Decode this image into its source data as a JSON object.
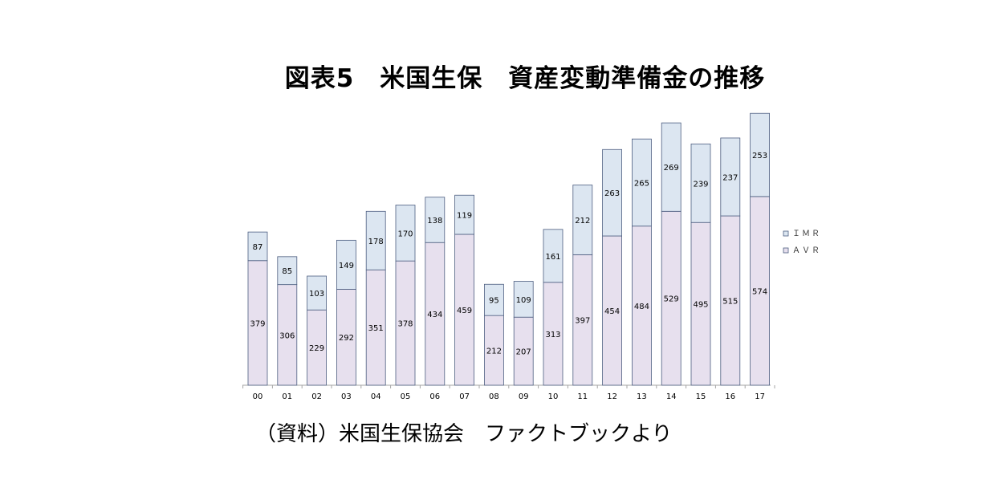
{
  "chart_data": {
    "type": "bar",
    "stacked": true,
    "title": "図表5　米国生保　資産変動準備金の推移",
    "source": "（資料）米国生保協会　ファクトブックより",
    "categories": [
      "00",
      "01",
      "02",
      "03",
      "04",
      "05",
      "06",
      "07",
      "08",
      "09",
      "10",
      "11",
      "12",
      "13",
      "14",
      "15",
      "16",
      "17"
    ],
    "series": [
      {
        "name": "ＡＶＲ",
        "color": "#e7e0ee",
        "values": [
          379,
          306,
          229,
          292,
          351,
          378,
          434,
          459,
          212,
          207,
          313,
          397,
          454,
          484,
          529,
          495,
          515,
          574
        ]
      },
      {
        "name": "ＩＭＲ",
        "color": "#dce6f1",
        "values": [
          87,
          85,
          103,
          149,
          178,
          170,
          138,
          119,
          95,
          109,
          161,
          212,
          263,
          265,
          269,
          239,
          237,
          253
        ]
      }
    ],
    "ylim": [
      0,
      830
    ],
    "grid": false,
    "legend_position": "right"
  }
}
